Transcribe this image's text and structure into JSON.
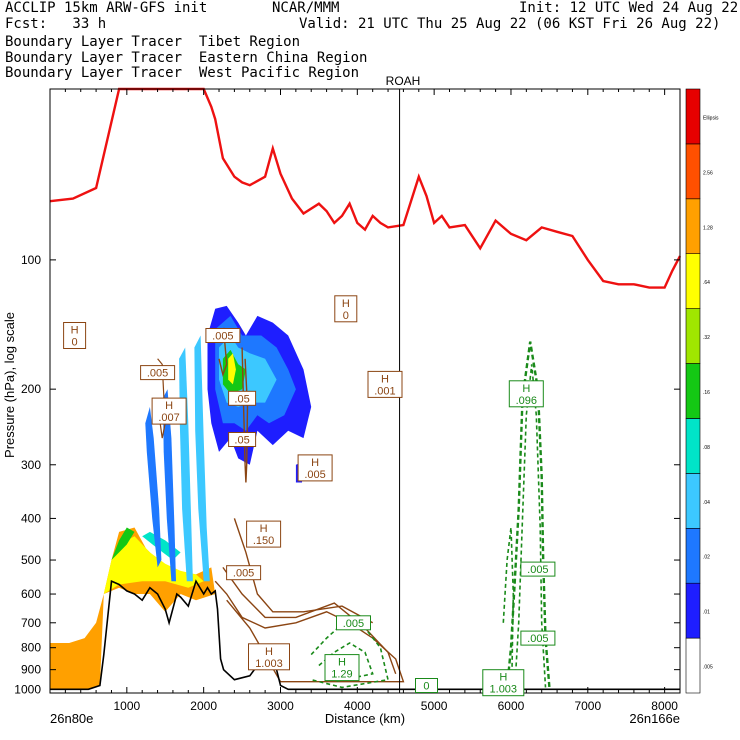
{
  "header": {
    "left_line1": "ACCLIP 15km ARW-GFS init",
    "center_line1": "NCAR/MMM",
    "right_line1": "Init: 12 UTC Wed 24 Aug 22",
    "left_line2": "Fcst:   33 h",
    "right_line2": "Valid: 21 UTC Thu 25 Aug 22 (06 KST Fri 26 Aug 22)",
    "legend": [
      {
        "text": "Boundary Layer Tracer  Tibet Region",
        "color": "#000000"
      },
      {
        "text": "Boundary Layer Tracer  Eastern China Region",
        "color": "#8b4513"
      },
      {
        "text": "Boundary Layer Tracer  West Pacific Region",
        "color": "#1a8a1a"
      }
    ]
  },
  "chart_data": {
    "type": "cross-section",
    "xlabel": "Distance (km)",
    "ylabel": "Pressure (hPa), log scale",
    "x_ticks": [
      1000,
      2000,
      3000,
      4000,
      5000,
      6000,
      7000,
      8000
    ],
    "y_ticks": [
      100,
      200,
      300,
      400,
      500,
      600,
      700,
      800,
      900,
      1000
    ],
    "xlim": [
      0,
      8200
    ],
    "ylim_hpa": [
      1020,
      40
    ],
    "y_scale": "log",
    "x_start_label": "26n80e",
    "x_end_label": "26n166e",
    "marker_label": "ROAH",
    "marker_x_km": 4550,
    "colorbar": {
      "levels": [
        ".005",
        ".01",
        ".02",
        ".04",
        ".08",
        ".16",
        ".32",
        ".64",
        "1.28",
        "2.56",
        "Ellipsis"
      ],
      "colors": [
        "#ffffff",
        "#1e1eff",
        "#1e78ff",
        "#3cc8ff",
        "#00e4c8",
        "#14c814",
        "#a0e600",
        "#ffff00",
        "#ffa000",
        "#ff5000",
        "#e60000"
      ]
    },
    "tropopause_line": {
      "color": "#ee1111",
      "x_km": [
        0,
        300,
        600,
        900,
        1200,
        1400,
        1700,
        1900,
        2000,
        2100,
        2150,
        2250,
        2400,
        2500,
        2600,
        2800,
        2900,
        3000,
        3150,
        3300,
        3500,
        3600,
        3700,
        3800,
        3900,
        4000,
        4100,
        4200,
        4300,
        4400,
        4600,
        4800,
        4900,
        5000,
        5100,
        5200,
        5400,
        5600,
        5800,
        6000,
        6200,
        6400,
        6600,
        6800,
        7000,
        7200,
        7400,
        7600,
        7800,
        8000,
        8100,
        8200
      ],
      "p_hpa": [
        73,
        72,
        68,
        40,
        40,
        40,
        40,
        40,
        40,
        44,
        47,
        58,
        64,
        66,
        67,
        64,
        55,
        63,
        72,
        78,
        74,
        77,
        82,
        79,
        74,
        82,
        85,
        79,
        82,
        84,
        83,
        64,
        71,
        82,
        79,
        84,
        83,
        94,
        81,
        87,
        90,
        84,
        86,
        88,
        100,
        112,
        114,
        114,
        116,
        116,
        106,
        98
      ]
    },
    "terrain": {
      "x_km": [
        0,
        300,
        500,
        650,
        700,
        800,
        900,
        1000,
        1100,
        1200,
        1300,
        1400,
        1500,
        1550,
        1650,
        1700,
        1800,
        1900,
        2000,
        2050,
        2100,
        2150,
        2180,
        2220,
        2260,
        2400,
        2600,
        2700,
        2800,
        2900,
        3000,
        3100,
        3300,
        3700,
        4000,
        4500,
        4800,
        5100,
        6000,
        7000,
        8200
      ],
      "p_hpa": [
        1000,
        1000,
        1000,
        980,
        830,
        560,
        570,
        590,
        600,
        620,
        580,
        600,
        650,
        700,
        600,
        610,
        640,
        560,
        600,
        580,
        600,
        590,
        650,
        850,
        900,
        950,
        930,
        880,
        790,
        830,
        980,
        1000,
        1000,
        1000,
        1000,
        1000,
        1000,
        1000,
        1000,
        1000,
        1000
      ]
    },
    "highs": [
      {
        "label": "H",
        "value": "0",
        "x_km": 320,
        "p_hpa": 150,
        "color": "#8b4513"
      },
      {
        "label": "H",
        "value": "0",
        "x_km": 3850,
        "p_hpa": 130,
        "color": "#8b4513"
      },
      {
        "label": "",
        "value": ".005",
        "x_km": 2250,
        "p_hpa": 150,
        "color": "#8b4513"
      },
      {
        "label": "",
        "value": ".005",
        "x_km": 1400,
        "p_hpa": 183,
        "color": "#8b4513"
      },
      {
        "label": "H",
        "value": ".007",
        "x_km": 1550,
        "p_hpa": 225,
        "color": "#8b4513"
      },
      {
        "label": "",
        "value": ".05",
        "x_km": 2500,
        "p_hpa": 210,
        "color": "#8b4513"
      },
      {
        "label": "",
        "value": ".05",
        "x_km": 2500,
        "p_hpa": 262,
        "color": "#8b4513"
      },
      {
        "label": "H",
        "value": ".001",
        "x_km": 4360,
        "p_hpa": 195,
        "color": "#8b4513"
      },
      {
        "label": "H",
        "value": ".005",
        "x_km": 3450,
        "p_hpa": 305,
        "color": "#8b4513"
      },
      {
        "label": "H",
        "value": ".150",
        "x_km": 2780,
        "p_hpa": 435,
        "color": "#8b4513"
      },
      {
        "label": "",
        "value": ".005",
        "x_km": 2520,
        "p_hpa": 535,
        "color": "#8b4513"
      },
      {
        "label": "H",
        "value": "1.003",
        "x_km": 2850,
        "p_hpa": 840,
        "color": "#8b4513"
      },
      {
        "label": "",
        "value": ".005",
        "x_km": 3950,
        "p_hpa": 700,
        "color": "#1a8a1a"
      },
      {
        "label": "H",
        "value": "1.29",
        "x_km": 3800,
        "p_hpa": 890,
        "color": "#1a8a1a"
      },
      {
        "label": "",
        "value": "0",
        "x_km": 4900,
        "p_hpa": 980,
        "color": "#1a8a1a"
      },
      {
        "label": "H",
        "value": ".096",
        "x_km": 6200,
        "p_hpa": 205,
        "color": "#1a8a1a"
      },
      {
        "label": "",
        "value": ".005",
        "x_km": 6350,
        "p_hpa": 525,
        "color": "#1a8a1a"
      },
      {
        "label": "",
        "value": ".005",
        "x_km": 6350,
        "p_hpa": 760,
        "color": "#1a8a1a"
      },
      {
        "label": "H",
        "value": "1.003",
        "x_km": 5900,
        "p_hpa": 965,
        "color": "#1a8a1a"
      }
    ]
  }
}
